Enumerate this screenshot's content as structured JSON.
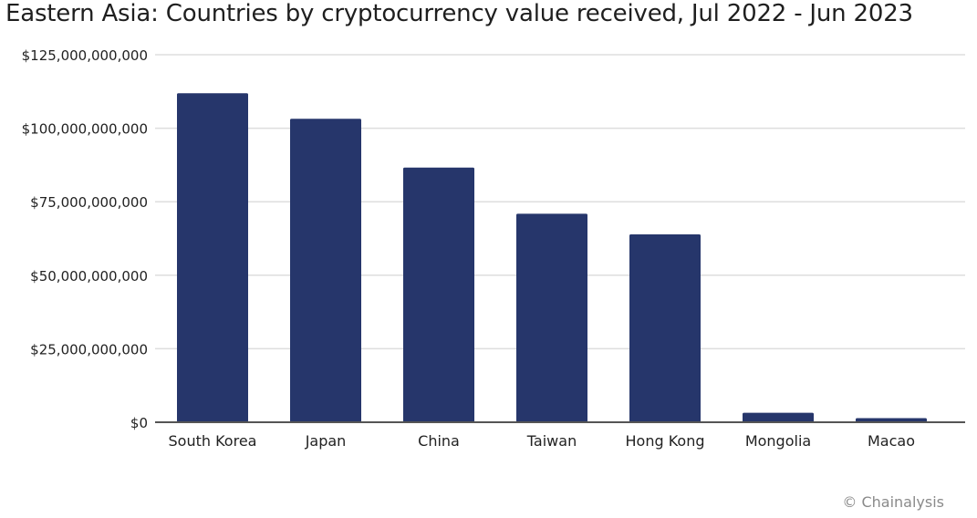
{
  "chart_data": {
    "type": "bar",
    "title": "Eastern Asia: Countries by cryptocurrency value received, Jul 2022 - Jun 2023",
    "categories": [
      "South Korea",
      "Japan",
      "China",
      "Taiwan",
      "Hong Kong",
      "Mongolia",
      "Macao"
    ],
    "values": [
      111900000000,
      103200000000,
      86600000000,
      70900000000,
      63900000000,
      3200000000,
      1400000000
    ],
    "ylim": [
      0,
      125000000000
    ],
    "yticks": [
      0,
      25000000000,
      50000000000,
      75000000000,
      100000000000,
      125000000000
    ],
    "ytick_labels": [
      "$0",
      "$25,000,000,000",
      "$50,000,000,000",
      "$75,000,000,000",
      "$100,000,000,000",
      "$125,000,000,000"
    ],
    "xlabel": "",
    "ylabel": "",
    "grid": true,
    "legend": "none",
    "bar_color": "#26366b",
    "grid_color": "#dedede",
    "axis_color": "#555555"
  },
  "source_credit": "© Chainalysis"
}
